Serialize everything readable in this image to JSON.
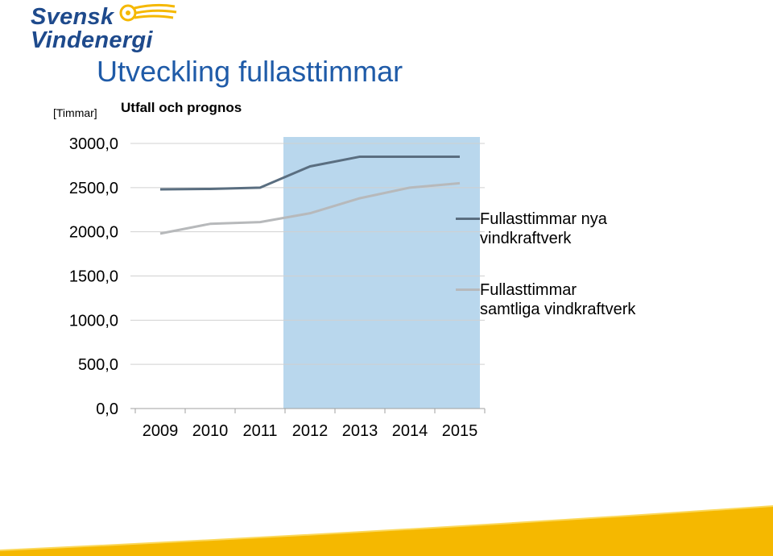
{
  "header": {
    "logo_line1": "Svensk",
    "logo_line2": "Vindenergi",
    "title": "Utveckling fullasttimmar",
    "subtitle": "Utfall och prognos",
    "unit_label": "[Timmar]"
  },
  "colors": {
    "brand_blue": "#1e4a8c",
    "brand_yellow": "#f5b800",
    "title_blue": "#1f5ba8",
    "highlight": "#b9d7ed",
    "series_new": "#5a6e80",
    "series_all": "#b7b9bb",
    "grid": "#d0d0d0"
  },
  "chart_data": {
    "type": "line",
    "title": "Utfall och prognos",
    "ylabel": "[Timmar]",
    "xlabel": "",
    "categories": [
      "2009",
      "2010",
      "2011",
      "2012",
      "2013",
      "2014",
      "2015"
    ],
    "y_ticks": [
      "0,0",
      "500,0",
      "1000,0",
      "1500,0",
      "2000,0",
      "2500,0",
      "3000,0"
    ],
    "ylim": [
      0,
      3000
    ],
    "grid": true,
    "legend_position": "right",
    "highlight_range": [
      "2012",
      "2015"
    ],
    "series": [
      {
        "name": "Fullasttimmar nya vindkraftverk",
        "values": [
          2480,
          2485,
          2500,
          2740,
          2850,
          2850,
          2850
        ]
      },
      {
        "name": "Fullasttimmar samtliga vindkraftverk",
        "values": [
          1980,
          2090,
          2110,
          2210,
          2380,
          2500,
          2550
        ]
      }
    ]
  }
}
